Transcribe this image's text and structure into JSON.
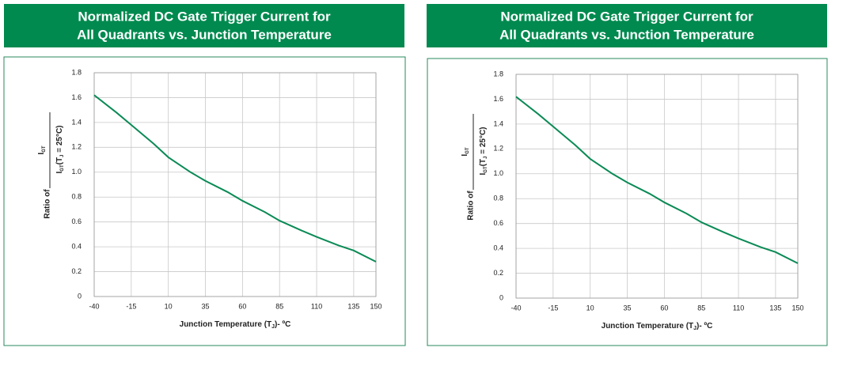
{
  "chart_data": [
    {
      "type": "line",
      "title": [
        "Normalized DC Gate Trigger Current for",
        "All Quadrants vs. Junction Temperature"
      ],
      "ylabel": "Ratio of",
      "ylabel_fraction": {
        "numerator": [
          "I",
          "GT"
        ],
        "denominator": [
          "I",
          "GT",
          "(T",
          "J",
          " = 25°C)"
        ]
      },
      "xlabel": [
        "Junction Temperature (T",
        "J",
        ")- ºC"
      ],
      "x": [
        -40,
        -25,
        -15,
        0,
        10,
        25,
        35,
        50,
        60,
        75,
        85,
        100,
        110,
        125,
        135,
        150
      ],
      "series": [
        {
          "color": "#0a8a55",
          "values": [
            1.62,
            1.48,
            1.38,
            1.23,
            1.12,
            1.0,
            0.93,
            0.84,
            0.77,
            0.68,
            0.61,
            0.53,
            0.48,
            0.41,
            0.37,
            0.28
          ]
        }
      ],
      "xlim": [
        -40,
        150
      ],
      "xticks": [
        -40,
        -15,
        10,
        35,
        60,
        85,
        110,
        135,
        150
      ],
      "ylim": [
        0,
        1.8
      ],
      "yticks": [
        {
          "value": 0,
          "label": "0"
        },
        0.2,
        0.4,
        0.6,
        0.8,
        {
          "value": 1,
          "label": "1.0"
        },
        1.2,
        1.4,
        1.6,
        1.8
      ],
      "grid": true
    },
    {
      "type": "line",
      "title": [
        "Normalized DC Gate Trigger Current for",
        "All Quadrants vs. Junction Temperature"
      ],
      "ylabel": "Ratio of",
      "ylabel_fraction": {
        "numerator": [
          "I",
          "GT"
        ],
        "denominator": [
          "I",
          "GT",
          "(T",
          "J",
          " = 25°C)"
        ]
      },
      "xlabel": [
        "Junction Temperature (T",
        "J",
        ")- ºC"
      ],
      "x": [
        -40,
        -25,
        -15,
        0,
        10,
        25,
        35,
        50,
        60,
        75,
        85,
        100,
        110,
        125,
        135,
        150
      ],
      "series": [
        {
          "color": "#0a8a55",
          "values": [
            1.62,
            1.48,
            1.38,
            1.23,
            1.12,
            1.0,
            0.93,
            0.84,
            0.77,
            0.68,
            0.61,
            0.53,
            0.48,
            0.41,
            0.37,
            0.28
          ]
        }
      ],
      "xlim": [
        -40,
        150
      ],
      "xticks": [
        -40,
        -15,
        10,
        35,
        60,
        85,
        110,
        135,
        150
      ],
      "ylim": [
        0,
        1.8
      ],
      "yticks": [
        {
          "value": 0,
          "label": "0"
        },
        0.2,
        0.4,
        0.6,
        0.8,
        {
          "value": 1,
          "label": "1.0"
        },
        1.2,
        1.4,
        1.6,
        1.8
      ],
      "grid": true
    }
  ]
}
